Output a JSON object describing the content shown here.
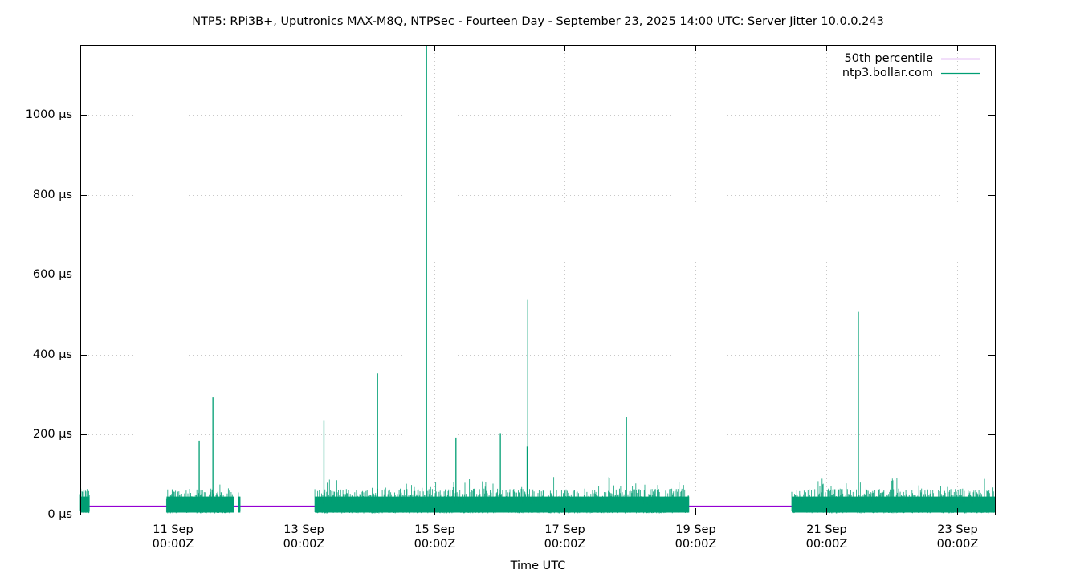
{
  "chart_data": {
    "type": "line",
    "title": "NTP5: RPi3B+, Uputronics MAX-M8Q, NTPSec - Fourteen Day - September 23, 2025 14:00 UTC: Server Jitter 10.0.0.243",
    "xlabel": "Time UTC",
    "ylabel": "",
    "x_range": [
      "2025-09-09 14:00",
      "2025-09-23 14:00"
    ],
    "ylim": [
      0,
      1175
    ],
    "y_unit": "µs",
    "grid": true,
    "legend_position": "top-right",
    "x_ticks": [
      {
        "label_line1": "11 Sep",
        "label_line2": "00:00Z",
        "day": 1.417
      },
      {
        "label_line1": "13 Sep",
        "label_line2": "00:00Z",
        "day": 3.417
      },
      {
        "label_line1": "15 Sep",
        "label_line2": "00:00Z",
        "day": 5.417
      },
      {
        "label_line1": "17 Sep",
        "label_line2": "00:00Z",
        "day": 7.417
      },
      {
        "label_line1": "19 Sep",
        "label_line2": "00:00Z",
        "day": 9.417
      },
      {
        "label_line1": "21 Sep",
        "label_line2": "00:00Z",
        "day": 11.417
      },
      {
        "label_line1": "23 Sep",
        "label_line2": "00:00Z",
        "day": 13.417
      }
    ],
    "y_ticks": [
      {
        "label": "0 µs",
        "value": 0
      },
      {
        "label": "200 µs",
        "value": 200
      },
      {
        "label": "400 µs",
        "value": 400
      },
      {
        "label": "600 µs",
        "value": 600
      },
      {
        "label": "800 µs",
        "value": 800
      },
      {
        "label": "1000 µs",
        "value": 1000
      }
    ],
    "series": [
      {
        "name": "50th percentile",
        "color": "#9400d3",
        "value": 22
      },
      {
        "name": "ntp3.bollar.com",
        "color": "#009e73",
        "typical_range": [
          5,
          75
        ],
        "data_segments_days": [
          [
            0.0,
            0.14
          ],
          [
            1.32,
            2.35
          ],
          [
            2.42,
            2.45
          ],
          [
            3.59,
            9.32
          ],
          [
            10.89,
            14.0
          ]
        ],
        "spikes": [
          {
            "day": 1.82,
            "value": 185
          },
          {
            "day": 2.03,
            "value": 293
          },
          {
            "day": 3.73,
            "value": 236
          },
          {
            "day": 4.55,
            "value": 353
          },
          {
            "day": 5.3,
            "value": 1175
          },
          {
            "day": 5.75,
            "value": 193
          },
          {
            "day": 6.43,
            "value": 202
          },
          {
            "day": 6.85,
            "value": 537
          },
          {
            "day": 6.84,
            "value": 170
          },
          {
            "day": 8.36,
            "value": 243
          },
          {
            "day": 11.91,
            "value": 507
          }
        ]
      }
    ]
  }
}
